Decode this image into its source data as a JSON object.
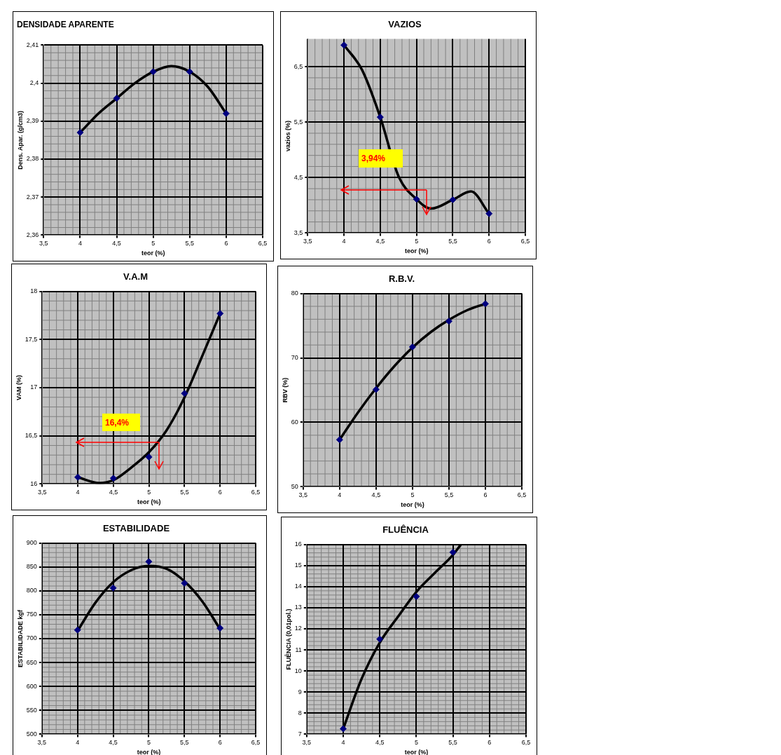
{
  "chart_data": [
    {
      "type": "scatter",
      "title": "DENSIDADE APARENTE",
      "xlabel": "teor (%)",
      "ylabel": "Dens. Apar. (g/cm3)",
      "xlim": [
        3.5,
        6.5
      ],
      "xticks": [
        {
          "value": 3.5,
          "label": "3,5"
        },
        4,
        {
          "value": 4.5,
          "label": "4,5"
        },
        5,
        {
          "value": 5.5,
          "label": "5,5"
        },
        6,
        {
          "value": 6.5,
          "label": "6,5"
        }
      ],
      "ylim": [
        2.36,
        2.41
      ],
      "yticks": [
        {
          "value": 2.36,
          "label": "2,36"
        },
        {
          "value": 2.37,
          "label": "2,37"
        },
        {
          "value": 2.38,
          "label": "2,38"
        },
        {
          "value": 2.39,
          "label": "2,39"
        },
        {
          "value": 2.4,
          "label": "2,4"
        },
        {
          "value": 2.41,
          "label": "2,41"
        }
      ],
      "grid": true,
      "legend": false,
      "marker": "diamond",
      "series": [
        {
          "type": "scatter",
          "color": "#000080",
          "x": [
            4,
            4.5,
            5,
            5.5,
            6
          ],
          "values": [
            2.387,
            2.396,
            2.403,
            2.403,
            2.392
          ]
        },
        {
          "type": "line",
          "color": "#000000",
          "marker": "none",
          "x": [
            4,
            4.25,
            4.5,
            4.75,
            5,
            5.25,
            5.5,
            5.75,
            6
          ],
          "values": [
            2.387,
            2.392,
            2.396,
            2.4,
            2.403,
            2.4045,
            2.403,
            2.399,
            2.392
          ]
        }
      ]
    },
    {
      "type": "scatter",
      "title": "VAZIOS",
      "xlabel": "teor (%)",
      "ylabel": "vazios (%)",
      "xlim": [
        3.5,
        6.5
      ],
      "xticks": [
        {
          "value": 3.5,
          "label": "3,5"
        },
        4,
        {
          "value": 4.5,
          "label": "4,5"
        },
        5,
        {
          "value": 5.5,
          "label": "5,5"
        },
        6,
        {
          "value": 6.5,
          "label": "6,5"
        }
      ],
      "ylim": [
        3.5,
        7
      ],
      "yticks": [
        {
          "value": 3.5,
          "label": "3,5"
        },
        {
          "value": 4.5,
          "label": "4,5"
        },
        {
          "value": 5.5,
          "label": "5,5"
        },
        {
          "value": 6.5,
          "label": "6,5"
        }
      ],
      "grid": true,
      "legend": false,
      "marker": "diamond",
      "annotations": [
        "3,94%"
      ],
      "series": [
        {
          "type": "scatter",
          "color": "#000080",
          "x": [
            4,
            4.5,
            5,
            5.5,
            6
          ],
          "values": [
            6.89,
            5.59,
            4.11,
            4.1,
            3.85
          ]
        },
        {
          "type": "line",
          "color": "#000000",
          "marker": "none",
          "x": [
            4,
            4.25,
            4.5,
            4.75,
            5,
            5.2,
            5.5,
            5.75,
            6
          ],
          "values": [
            6.89,
            6.44,
            5.59,
            4.53,
            4.11,
            3.94,
            4.1,
            4.25,
            3.85
          ]
        }
      ]
    },
    {
      "type": "scatter",
      "title": "V.A.M",
      "xlabel": "teor (%)",
      "ylabel": "VAM (%)",
      "xlim": [
        3.5,
        6.5
      ],
      "xticks": [
        {
          "value": 3.5,
          "label": "3,5"
        },
        4,
        {
          "value": 4.5,
          "label": "4,5"
        },
        5,
        {
          "value": 5.5,
          "label": "5,5"
        },
        6,
        {
          "value": 6.5,
          "label": "6,5"
        }
      ],
      "ylim": [
        16,
        18
      ],
      "yticks": [
        16,
        {
          "value": 16.5,
          "label": "16,5"
        },
        17,
        {
          "value": 17.5,
          "label": "17,5"
        },
        18
      ],
      "grid": true,
      "legend": false,
      "marker": "diamond",
      "annotations": [
        "16,4%"
      ],
      "series": [
        {
          "type": "scatter",
          "color": "#000080",
          "x": [
            4,
            4.5,
            5,
            5.5,
            6
          ],
          "values": [
            16.07,
            16.06,
            16.28,
            16.94,
            17.77
          ]
        },
        {
          "type": "line",
          "color": "#000000",
          "marker": "none",
          "x": [
            4,
            4.3,
            4.5,
            4.75,
            5,
            5.25,
            5.5,
            5.75,
            6
          ],
          "values": [
            16.07,
            16.01,
            16.04,
            16.17,
            16.33,
            16.56,
            16.9,
            17.33,
            17.77
          ]
        }
      ]
    },
    {
      "type": "scatter",
      "title": "R.B.V.",
      "xlabel": "teor (%)",
      "ylabel": "RBV (%)",
      "xlim": [
        3.5,
        6.5
      ],
      "xticks": [
        {
          "value": 3.5,
          "label": "3,5"
        },
        4,
        {
          "value": 4.5,
          "label": "4,5"
        },
        5,
        {
          "value": 5.5,
          "label": "5,5"
        },
        6,
        {
          "value": 6.5,
          "label": "6,5"
        }
      ],
      "ylim": [
        50,
        80
      ],
      "yticks": [
        50,
        60,
        70,
        80
      ],
      "grid": true,
      "legend": false,
      "marker": "diamond",
      "series": [
        {
          "type": "scatter",
          "color": "#000080",
          "x": [
            4,
            4.5,
            5,
            5.5,
            6
          ],
          "values": [
            57.3,
            65.1,
            71.7,
            75.7,
            78.4
          ]
        },
        {
          "type": "line",
          "color": "#000000",
          "marker": "none",
          "x": [
            4,
            4.25,
            4.5,
            4.75,
            5,
            5.25,
            5.5,
            5.75,
            6
          ],
          "values": [
            57.3,
            61.5,
            65.3,
            68.7,
            71.6,
            74,
            75.9,
            77.4,
            78.4
          ]
        }
      ]
    },
    {
      "type": "scatter",
      "title": "ESTABILIDADE",
      "xlabel": "teor (%)",
      "ylabel": "ESTABILIDADE kgf",
      "xlim": [
        3.5,
        6.5
      ],
      "xticks": [
        {
          "value": 3.5,
          "label": "3,5"
        },
        4,
        {
          "value": 4.5,
          "label": "4,5"
        },
        5,
        {
          "value": 5.5,
          "label": "5,5"
        },
        6,
        {
          "value": 6.5,
          "label": "6,5"
        }
      ],
      "ylim": [
        500,
        900
      ],
      "yticks": [
        500,
        550,
        600,
        650,
        700,
        750,
        800,
        850,
        900
      ],
      "grid": true,
      "legend": false,
      "marker": "diamond",
      "series": [
        {
          "type": "scatter",
          "color": "#000080",
          "x": [
            4,
            4.5,
            5,
            5.5,
            6
          ],
          "values": [
            718,
            806,
            861,
            816,
            722
          ]
        },
        {
          "type": "line",
          "color": "#000000",
          "marker": "none",
          "x": [
            4,
            4.25,
            4.5,
            4.75,
            5,
            5.25,
            5.5,
            5.75,
            6
          ],
          "values": [
            716,
            775,
            818,
            843,
            852,
            846,
            820,
            778,
            720
          ]
        }
      ]
    },
    {
      "type": "scatter",
      "title": "FLUÊNCIA",
      "xlabel": "teor (%)",
      "ylabel": "FLUÊNCIA (0,01pol.)",
      "xlim": [
        3.5,
        6.5
      ],
      "xticks": [
        {
          "value": 3.5,
          "label": "3,5"
        },
        4,
        {
          "value": 4.5,
          "label": "4,5"
        },
        5,
        {
          "value": 5.5,
          "label": "5,5"
        },
        6,
        {
          "value": 6.5,
          "label": "6,5"
        }
      ],
      "ylim": [
        7,
        16
      ],
      "yticks": [
        7,
        8,
        9,
        10,
        11,
        12,
        13,
        14,
        15,
        16
      ],
      "grid": true,
      "legend": false,
      "marker": "diamond",
      "series": [
        {
          "type": "scatter",
          "color": "#000080",
          "x": [
            4,
            4.5,
            5,
            5.5
          ],
          "values": [
            7.26,
            11.51,
            13.53,
            15.63
          ]
        },
        {
          "type": "line",
          "color": "#000000",
          "marker": "none",
          "x": [
            4,
            4.25,
            4.5,
            4.75,
            5,
            5.25,
            5.5,
            5.61
          ],
          "values": [
            7.26,
            9.62,
            11.35,
            12.58,
            13.75,
            14.64,
            15.5,
            16
          ]
        }
      ]
    }
  ]
}
